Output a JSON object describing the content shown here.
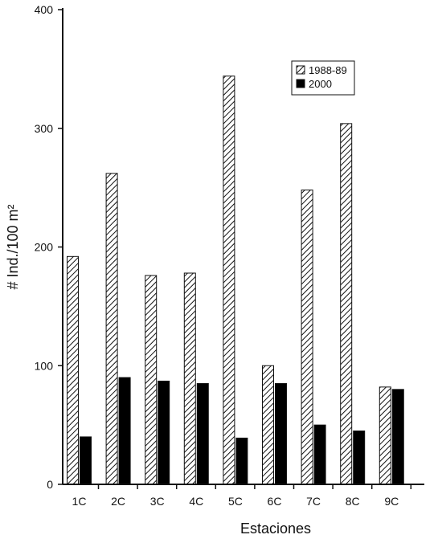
{
  "chart_data": {
    "type": "bar",
    "categories": [
      "1C",
      "2C",
      "3C",
      "4C",
      "5C",
      "6C",
      "7C",
      "8C",
      "9C"
    ],
    "series": [
      {
        "name": "1988-89",
        "values": [
          192,
          262,
          176,
          178,
          344,
          100,
          248,
          304,
          82
        ],
        "pattern": "diagonal-hatch"
      },
      {
        "name": "2000",
        "values": [
          40,
          90,
          87,
          85,
          39,
          85,
          50,
          45,
          80
        ],
        "color": "#000000"
      }
    ],
    "yticks": [
      0,
      100,
      200,
      300,
      400
    ],
    "ylim": [
      0,
      400
    ],
    "xlabel": "Estaciones",
    "ylabel": "# Ind./100 m²",
    "legend": "top-right",
    "grid": false
  }
}
